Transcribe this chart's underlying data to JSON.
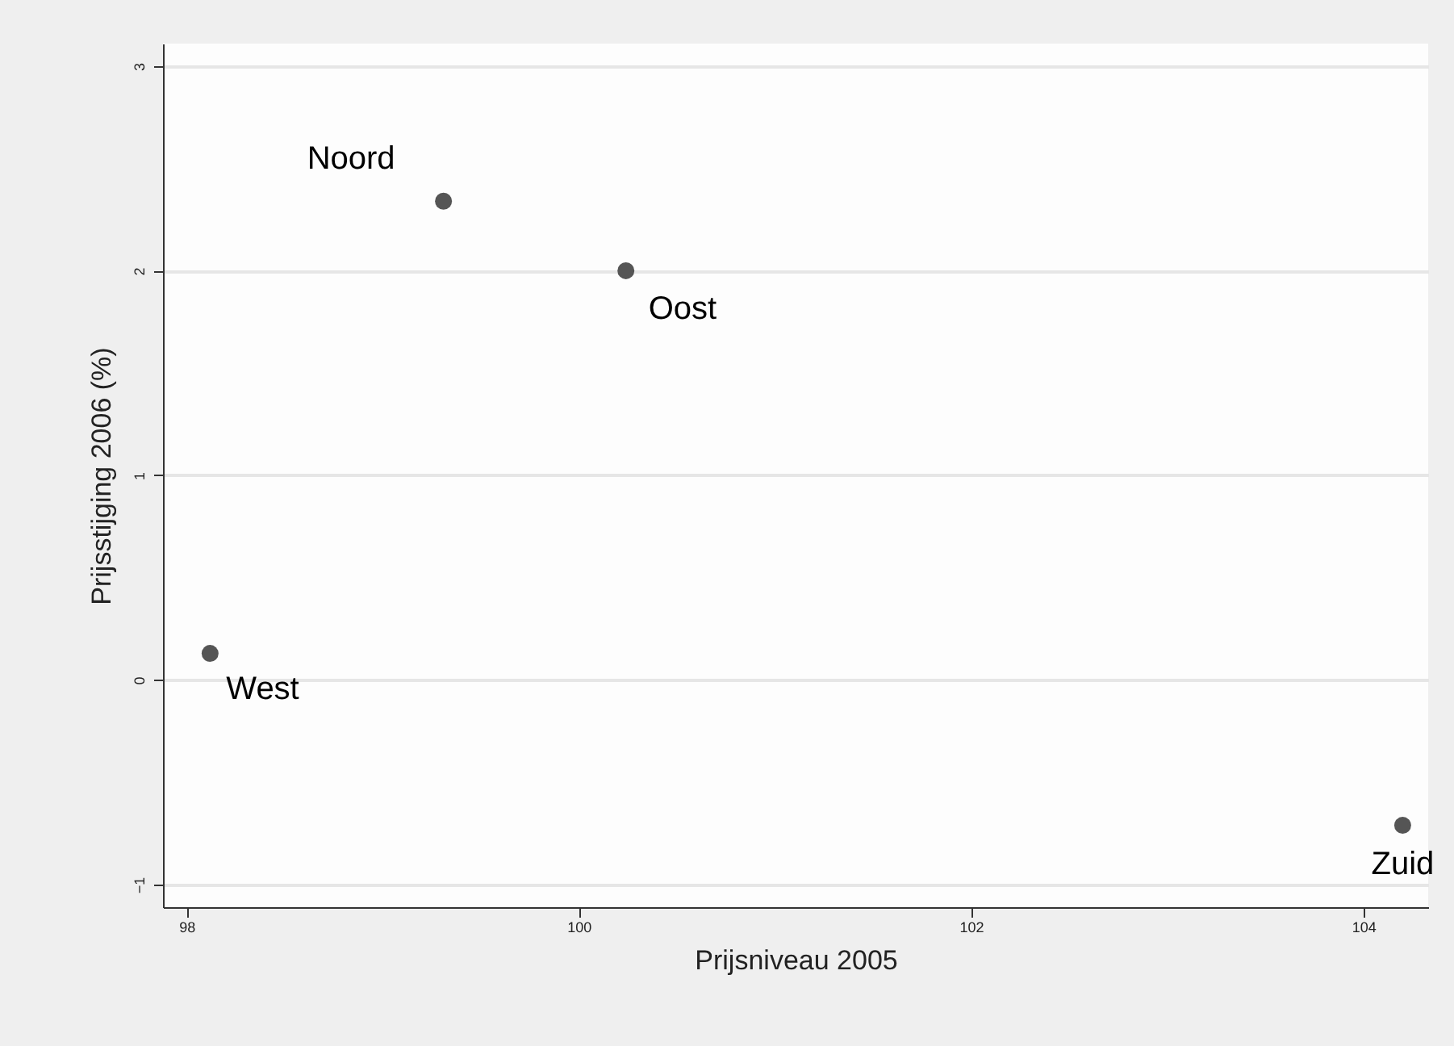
{
  "chart_data": {
    "type": "scatter",
    "xlabel": "Prijsniveau 2005",
    "ylabel": "Prijsstijging 2006 (%)",
    "x": [
      98.12,
      99.31,
      100.24,
      104.2
    ],
    "series": [
      {
        "color": "#555555",
        "values": [
          0.13,
          2.34,
          2.0,
          -0.71
        ]
      }
    ],
    "annotations": [
      {
        "text": "West",
        "x": 98.12,
        "y": 0.13
      },
      {
        "text": "Noord",
        "x": 99.31,
        "y": 2.34
      },
      {
        "text": "Oost",
        "x": 100.24,
        "y": 2.0
      },
      {
        "text": "Zuid",
        "x": 104.2,
        "y": -0.71
      }
    ],
    "xlim": [
      97.88,
      104.33
    ],
    "ylim": [
      -1.11,
      3.11
    ],
    "xticks": [
      98,
      100,
      102,
      104
    ],
    "yticks": [
      -1,
      0,
      1,
      2,
      3
    ],
    "grid": "y",
    "marker": "circle"
  }
}
